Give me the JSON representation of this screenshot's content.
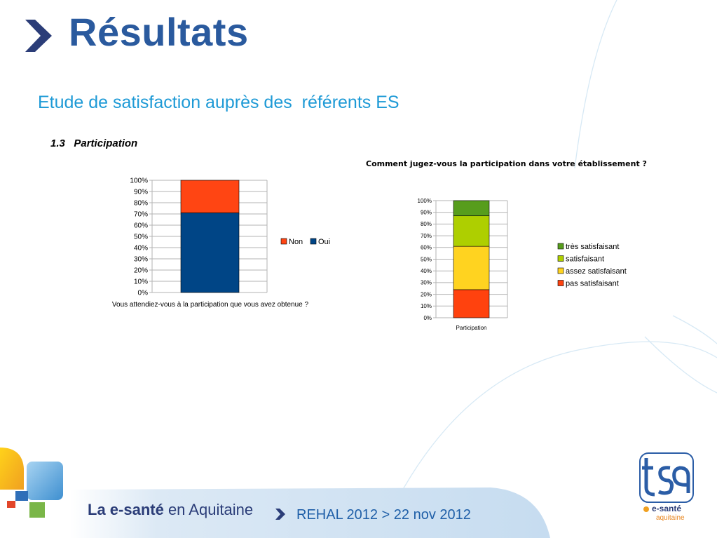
{
  "header": {
    "title": "Résultats",
    "subtitle": "Etude de satisfaction auprès des  référents ES"
  },
  "section": {
    "number": "1.3",
    "label": "Participation"
  },
  "colors": {
    "title": "#2a5a9e",
    "subtitle": "#1e9ad6",
    "non": "#ff4513",
    "oui": "#004586",
    "tres_satisfaisant": "#579d1c",
    "satisfaisant": "#aecf00",
    "assez_satisfaisant": "#ffd320",
    "pas_satisfaisant": "#ff420e"
  },
  "chart_data": [
    {
      "type": "bar",
      "stacked": true,
      "title": "",
      "xlabel": "Vous attendiez-vous à la participation que vous avez obtenue ?",
      "ylabel": "",
      "ylim": [
        0,
        100
      ],
      "yticks": [
        "0%",
        "10%",
        "20%",
        "30%",
        "40%",
        "50%",
        "60%",
        "70%",
        "80%",
        "90%",
        "100%"
      ],
      "categories": [
        ""
      ],
      "series": [
        {
          "name": "Oui",
          "values": [
            71
          ]
        },
        {
          "name": "Non",
          "values": [
            29
          ]
        }
      ],
      "legend": [
        "Non",
        "Oui"
      ],
      "legend_position": "right",
      "grid": true
    },
    {
      "type": "bar",
      "stacked": true,
      "title": "Comment jugez-vous la participation dans votre établissement ?",
      "xlabel": "",
      "ylabel": "",
      "ylim": [
        0,
        100
      ],
      "yticks": [
        "0%",
        "10%",
        "20%",
        "30%",
        "40%",
        "50%",
        "60%",
        "70%",
        "80%",
        "90%",
        "100%"
      ],
      "categories": [
        "Participation"
      ],
      "series": [
        {
          "name": "pas satisfaisant",
          "values": [
            24
          ]
        },
        {
          "name": "assez satisfaisant",
          "values": [
            37
          ]
        },
        {
          "name": "satisfaisant",
          "values": [
            26
          ]
        },
        {
          "name": "très satisfaisant",
          "values": [
            13
          ]
        }
      ],
      "legend": [
        "très satisfaisant",
        "satisfaisant",
        "assez satisfaisant",
        "pas satisfaisant"
      ],
      "legend_position": "right",
      "grid": true
    }
  ],
  "footer": {
    "brand_bold": "La e-santé",
    "brand_rest": " en Aquitaine",
    "event": "REHAL 2012 > 22 nov 2012",
    "logo_main": "e-santé",
    "logo_sub": "aquitaine"
  }
}
